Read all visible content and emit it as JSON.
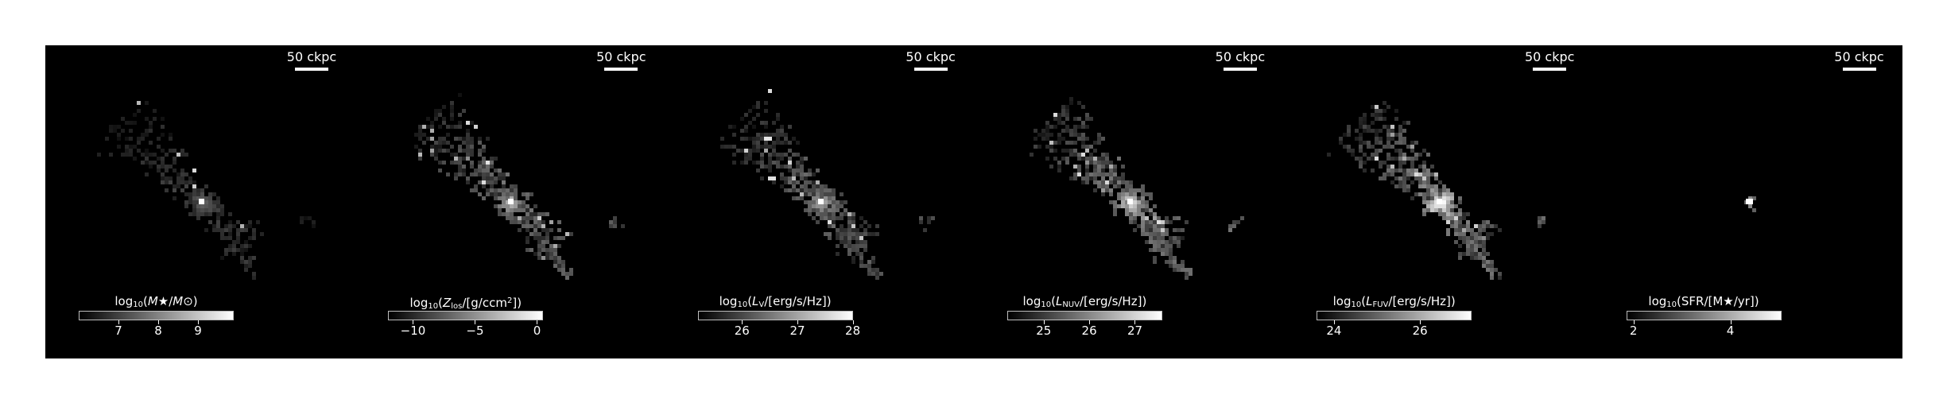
{
  "figure": {
    "scale_label": "50 ckpc",
    "panels": [
      {
        "id": "stellar-mass",
        "colorbar": {
          "title_parts": [
            "log",
            "10",
            "(",
            "M★",
            "/",
            "M⊙",
            ")"
          ],
          "title_format": "sub-index-1",
          "range": [
            6.0,
            9.9
          ],
          "ticks": [
            {
              "value": 7,
              "label": "7"
            },
            {
              "value": 8,
              "label": "8"
            },
            {
              "value": 9,
              "label": "9"
            }
          ]
        },
        "brightness": 0.55,
        "halo": 0.9,
        "scatter": 0.55
      },
      {
        "id": "metallicity",
        "colorbar": {
          "title_parts": [
            "log",
            "10",
            "(",
            "Z",
            "los",
            "/[g/ccm",
            "2",
            "])"
          ],
          "title_format": "metallicity",
          "range": [
            -12.0,
            0.5
          ],
          "ticks": [
            {
              "value": -10,
              "label": "−10"
            },
            {
              "value": -5,
              "label": "−5"
            },
            {
              "value": 0,
              "label": "0"
            }
          ]
        },
        "brightness": 0.9,
        "halo": 1.0,
        "scatter": 1.0
      },
      {
        "id": "v-band",
        "colorbar": {
          "title_parts": [
            "log",
            "10",
            "(",
            "L",
            "V",
            "/[erg/s/Hz])"
          ],
          "title_format": "luminosity",
          "range": [
            25.2,
            28.0
          ],
          "ticks": [
            {
              "value": 26,
              "label": "26"
            },
            {
              "value": 27,
              "label": "27"
            },
            {
              "value": 28,
              "label": "28"
            }
          ]
        },
        "brightness": 0.85,
        "halo": 1.0,
        "scatter": 1.0
      },
      {
        "id": "nuv",
        "colorbar": {
          "title_parts": [
            "log",
            "10",
            "(",
            "L",
            "NUV",
            "/[erg/s/Hz])"
          ],
          "title_format": "luminosity",
          "range": [
            24.2,
            27.6
          ],
          "ticks": [
            {
              "value": 25,
              "label": "25"
            },
            {
              "value": 26,
              "label": "26"
            },
            {
              "value": 27,
              "label": "27"
            }
          ]
        },
        "brightness": 1.0,
        "halo": 1.1,
        "scatter": 1.1
      },
      {
        "id": "fuv",
        "colorbar": {
          "title_parts": [
            "log",
            "10",
            "(",
            "L",
            "FUV",
            "/[erg/s/Hz])"
          ],
          "title_format": "luminosity",
          "range": [
            23.6,
            27.2
          ],
          "ticks": [
            {
              "value": 24,
              "label": "24"
            },
            {
              "value": 26,
              "label": "26"
            }
          ]
        },
        "brightness": 1.05,
        "halo": 1.25,
        "scatter": 1.15
      },
      {
        "id": "sfr",
        "colorbar": {
          "title_parts": [
            "log",
            "10",
            "(SFR/[M★/yr])"
          ],
          "title_format": "sfr",
          "range": [
            1.85,
            5.05
          ],
          "ticks": [
            {
              "value": 2,
              "label": "2"
            },
            {
              "value": 4,
              "label": "4"
            }
          ]
        },
        "brightness": 1.0,
        "halo": 0.0,
        "scatter": 0.0
      }
    ]
  }
}
